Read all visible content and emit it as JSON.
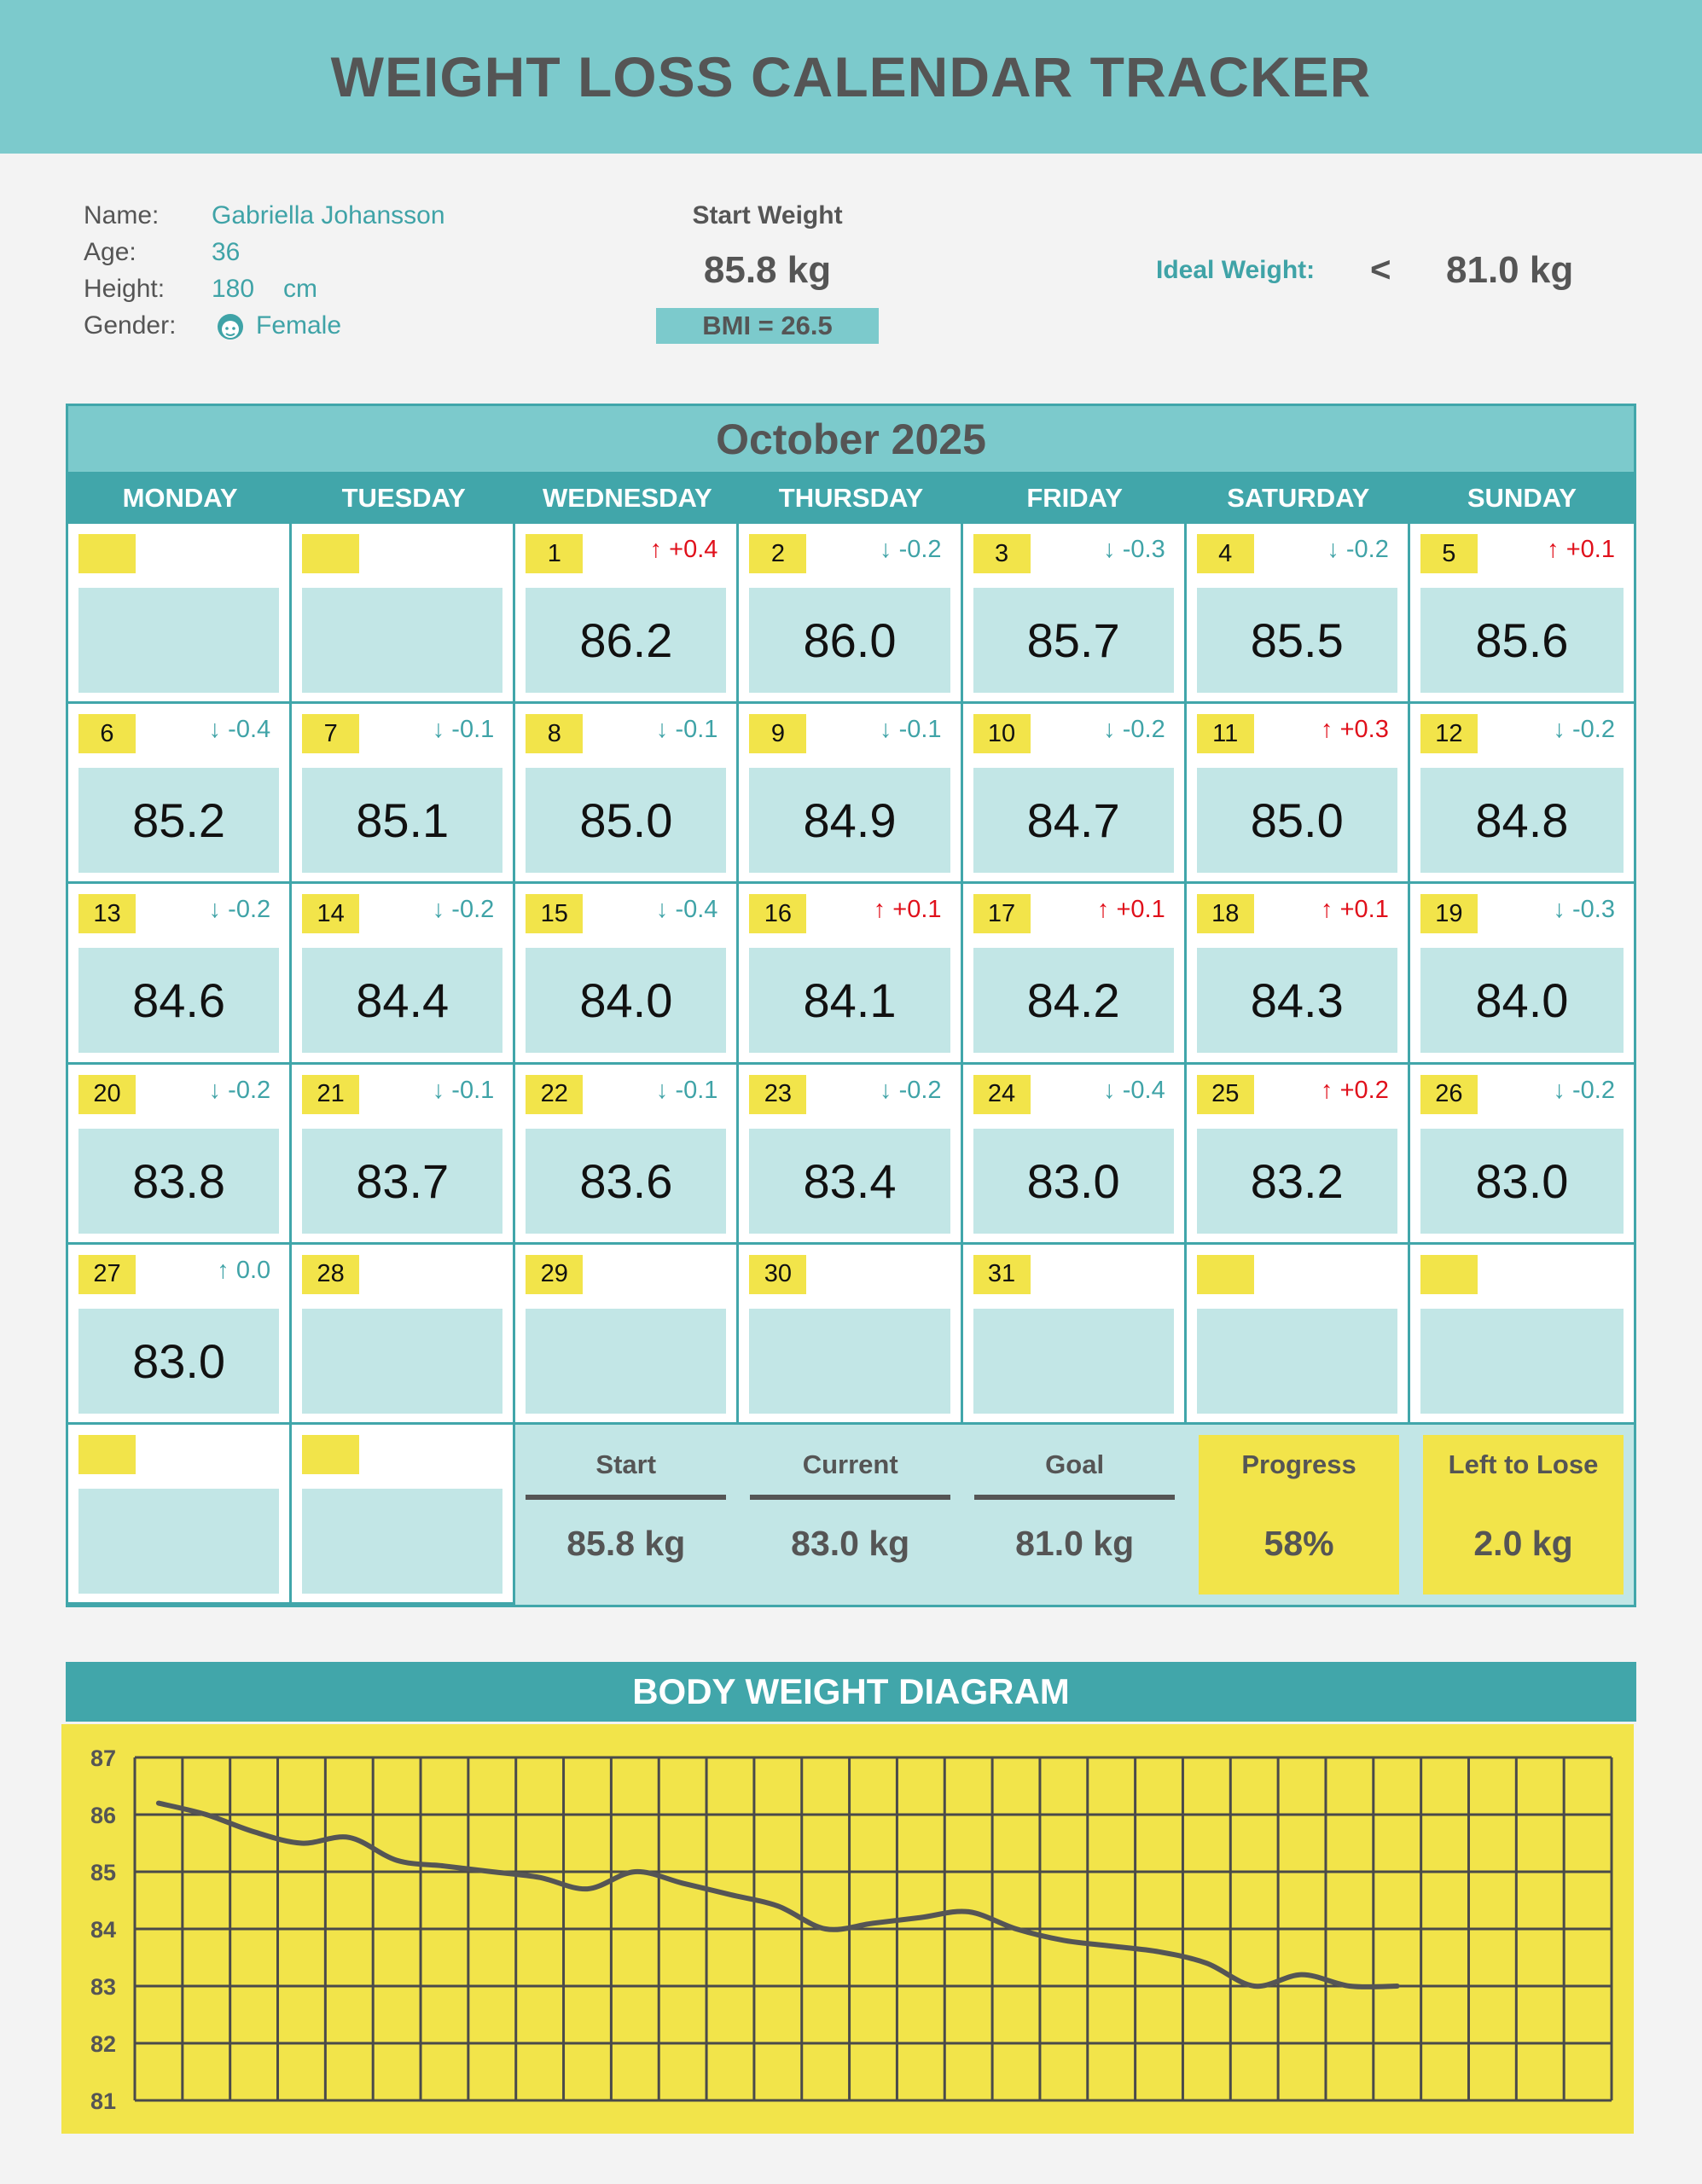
{
  "title": "WEIGHT LOSS CALENDAR TRACKER",
  "profile": {
    "name_label": "Name:",
    "name": "Gabriella Johansson",
    "age_label": "Age:",
    "age": "36",
    "height_label": "Height:",
    "height": "180",
    "height_unit": "cm",
    "gender_label": "Gender:",
    "gender": "Female",
    "gender_icon": "female-face-icon"
  },
  "start": {
    "label": "Start Weight",
    "value": "85.8 kg",
    "bmi": "BMI = 26.5"
  },
  "ideal": {
    "label": "Ideal Weight:",
    "symbol": "<",
    "value": "81.0 kg"
  },
  "calendar": {
    "month": "October 2025",
    "days_of_week": [
      "MONDAY",
      "TUESDAY",
      "WEDNESDAY",
      "THURSDAY",
      "FRIDAY",
      "SATURDAY",
      "SUNDAY"
    ],
    "cells": [
      {
        "day": "",
        "change": "",
        "weight": ""
      },
      {
        "day": "",
        "change": "",
        "weight": ""
      },
      {
        "day": "1",
        "change": "↑ +0.4",
        "dir": "up",
        "weight": "86.2"
      },
      {
        "day": "2",
        "change": "↓ -0.2",
        "dir": "down",
        "weight": "86.0"
      },
      {
        "day": "3",
        "change": "↓ -0.3",
        "dir": "down",
        "weight": "85.7"
      },
      {
        "day": "4",
        "change": "↓ -0.2",
        "dir": "down",
        "weight": "85.5"
      },
      {
        "day": "5",
        "change": "↑ +0.1",
        "dir": "up",
        "weight": "85.6"
      },
      {
        "day": "6",
        "change": "↓ -0.4",
        "dir": "down",
        "weight": "85.2"
      },
      {
        "day": "7",
        "change": "↓ -0.1",
        "dir": "down",
        "weight": "85.1"
      },
      {
        "day": "8",
        "change": "↓ -0.1",
        "dir": "down",
        "weight": "85.0"
      },
      {
        "day": "9",
        "change": "↓ -0.1",
        "dir": "down",
        "weight": "84.9"
      },
      {
        "day": "10",
        "change": "↓ -0.2",
        "dir": "down",
        "weight": "84.7"
      },
      {
        "day": "11",
        "change": "↑ +0.3",
        "dir": "up",
        "weight": "85.0"
      },
      {
        "day": "12",
        "change": "↓ -0.2",
        "dir": "down",
        "weight": "84.8"
      },
      {
        "day": "13",
        "change": "↓ -0.2",
        "dir": "down",
        "weight": "84.6"
      },
      {
        "day": "14",
        "change": "↓ -0.2",
        "dir": "down",
        "weight": "84.4"
      },
      {
        "day": "15",
        "change": "↓ -0.4",
        "dir": "down",
        "weight": "84.0"
      },
      {
        "day": "16",
        "change": "↑ +0.1",
        "dir": "up",
        "weight": "84.1"
      },
      {
        "day": "17",
        "change": "↑ +0.1",
        "dir": "up",
        "weight": "84.2"
      },
      {
        "day": "18",
        "change": "↑ +0.1",
        "dir": "up",
        "weight": "84.3"
      },
      {
        "day": "19",
        "change": "↓ -0.3",
        "dir": "down",
        "weight": "84.0"
      },
      {
        "day": "20",
        "change": "↓ -0.2",
        "dir": "down",
        "weight": "83.8"
      },
      {
        "day": "21",
        "change": "↓ -0.1",
        "dir": "down",
        "weight": "83.7"
      },
      {
        "day": "22",
        "change": "↓ -0.1",
        "dir": "down",
        "weight": "83.6"
      },
      {
        "day": "23",
        "change": "↓ -0.2",
        "dir": "down",
        "weight": "83.4"
      },
      {
        "day": "24",
        "change": "↓ -0.4",
        "dir": "down",
        "weight": "83.0"
      },
      {
        "day": "25",
        "change": "↑ +0.2",
        "dir": "up",
        "weight": "83.2"
      },
      {
        "day": "26",
        "change": "↓ -0.2",
        "dir": "down",
        "weight": "83.0"
      },
      {
        "day": "27",
        "change": "↑ 0.0",
        "dir": "down",
        "weight": "83.0"
      },
      {
        "day": "28",
        "change": "",
        "weight": ""
      },
      {
        "day": "29",
        "change": "",
        "weight": ""
      },
      {
        "day": "30",
        "change": "",
        "weight": ""
      },
      {
        "day": "31",
        "change": "",
        "weight": ""
      },
      {
        "day": "",
        "change": "",
        "weight": ""
      },
      {
        "day": "",
        "change": "",
        "weight": ""
      },
      {
        "day": "",
        "change": "",
        "weight": ""
      },
      {
        "day": "",
        "change": "",
        "weight": ""
      }
    ]
  },
  "summary": [
    {
      "label": "Start",
      "value": "85.8 kg"
    },
    {
      "label": "Current",
      "value": "83.0 kg"
    },
    {
      "label": "Goal",
      "value": "81.0 kg"
    },
    {
      "label": "Progress",
      "value": "58%",
      "highlight": true
    },
    {
      "label": "Left to Lose",
      "value": "2.0 kg",
      "highlight": true
    }
  ],
  "colors": {
    "header": "#7ccacc",
    "accent": "#41a6aa",
    "cell": "#c2e6e6",
    "yellow": "#f2e44a",
    "up": "#e0101b",
    "down": "#3fa3a7"
  },
  "chart_data": {
    "type": "line",
    "title": "BODY WEIGHT DIAGRAM",
    "x": [
      1,
      2,
      3,
      4,
      5,
      6,
      7,
      8,
      9,
      10,
      11,
      12,
      13,
      14,
      15,
      16,
      17,
      18,
      19,
      20,
      21,
      22,
      23,
      24,
      25,
      26,
      27
    ],
    "values": [
      86.2,
      86.0,
      85.7,
      85.5,
      85.6,
      85.2,
      85.1,
      85.0,
      84.9,
      84.7,
      85.0,
      84.8,
      84.6,
      84.4,
      84.0,
      84.1,
      84.2,
      84.3,
      84.0,
      83.8,
      83.7,
      83.6,
      83.4,
      83.0,
      83.2,
      83.0,
      83.0
    ],
    "xlim": [
      1,
      31
    ],
    "ylim": [
      81,
      87
    ],
    "yticks": [
      "81",
      "82",
      "83",
      "84",
      "85",
      "86",
      "87"
    ],
    "grid": true,
    "smooth": true
  }
}
